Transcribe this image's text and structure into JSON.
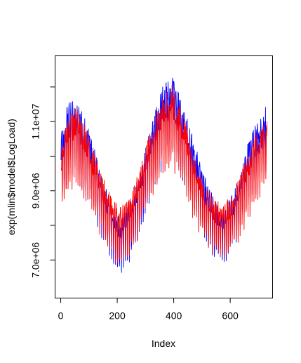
{
  "chart_data": {
    "type": "line",
    "xlabel": "Index",
    "ylabel": "exp(mlin$model$LogLoad)",
    "xlim": [
      -20,
      750
    ],
    "ylim": [
      5900000,
      12900000
    ],
    "x_ticks": [
      0,
      200,
      400,
      600
    ],
    "y_ticks": [
      7000000,
      8000000,
      9000000,
      10000000,
      11000000,
      12000000
    ],
    "y_tick_labels": [
      "7.0e+06",
      "",
      "9.0e+06",
      "",
      "1.1e+07",
      ""
    ],
    "n_points": 730,
    "grid": false,
    "series": [
      {
        "color": "#0000FF",
        "x_range": [
          1,
          730
        ],
        "trend_x": [
          0,
          25,
          55,
          90,
          130,
          165,
          210,
          245,
          280,
          320,
          360,
          395,
          430,
          470,
          510,
          545,
          575,
          610,
          650,
          690,
          730
        ],
        "trend_y": [
          10200000,
          11100000,
          11200000,
          10600000,
          9600000,
          8600000,
          7900000,
          8300000,
          9200000,
          10500000,
          11600000,
          11900000,
          11100000,
          10100000,
          9100000,
          8400000,
          8200000,
          8600000,
          9700000,
          10600000,
          11200000
        ],
        "trend_y_is_estimated": true
      },
      {
        "color": "#FF0000",
        "x_range": [
          1,
          730
        ],
        "trend_x": [
          0,
          25,
          55,
          90,
          130,
          165,
          210,
          245,
          280,
          320,
          360,
          395,
          430,
          470,
          510,
          545,
          575,
          610,
          650,
          690,
          730
        ],
        "trend_y": [
          9800000,
          10700000,
          11000000,
          10400000,
          9500000,
          8700000,
          8200000,
          8500000,
          9300000,
          10400000,
          11300000,
          11600000,
          10900000,
          9800000,
          8900000,
          8400000,
          8300000,
          8600000,
          9500000,
          10300000,
          10700000
        ],
        "trend_y_is_estimated": true
      }
    ]
  }
}
